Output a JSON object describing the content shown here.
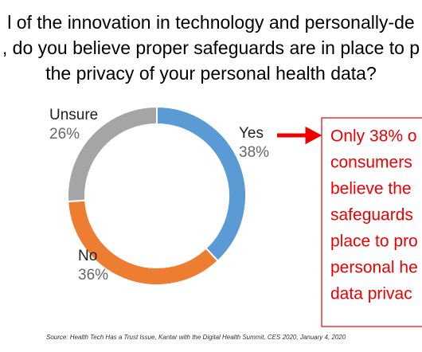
{
  "chart_data": {
    "type": "donut",
    "title_lines": [
      "l of the innovation in technology and personally-de",
      ", do you believe proper safeguards are in place to p",
      "the privacy of your personal health data?"
    ],
    "categories": [
      "Yes",
      "No",
      "Unsure"
    ],
    "values": [
      38,
      36,
      26
    ],
    "value_labels": [
      "38%",
      "36%",
      "26%"
    ],
    "colors": [
      "#5b9bd5",
      "#ed7d31",
      "#a5a5a5"
    ],
    "callout_lines": [
      "Only 38% o",
      "consumers",
      "believe the",
      "safeguards",
      "place to pro",
      "personal he",
      "data privac"
    ],
    "source": "Source: Health Tech Has a Trust Issue, Kantar with the Digital Health Summit, CES 2020, January 4, 2020"
  }
}
